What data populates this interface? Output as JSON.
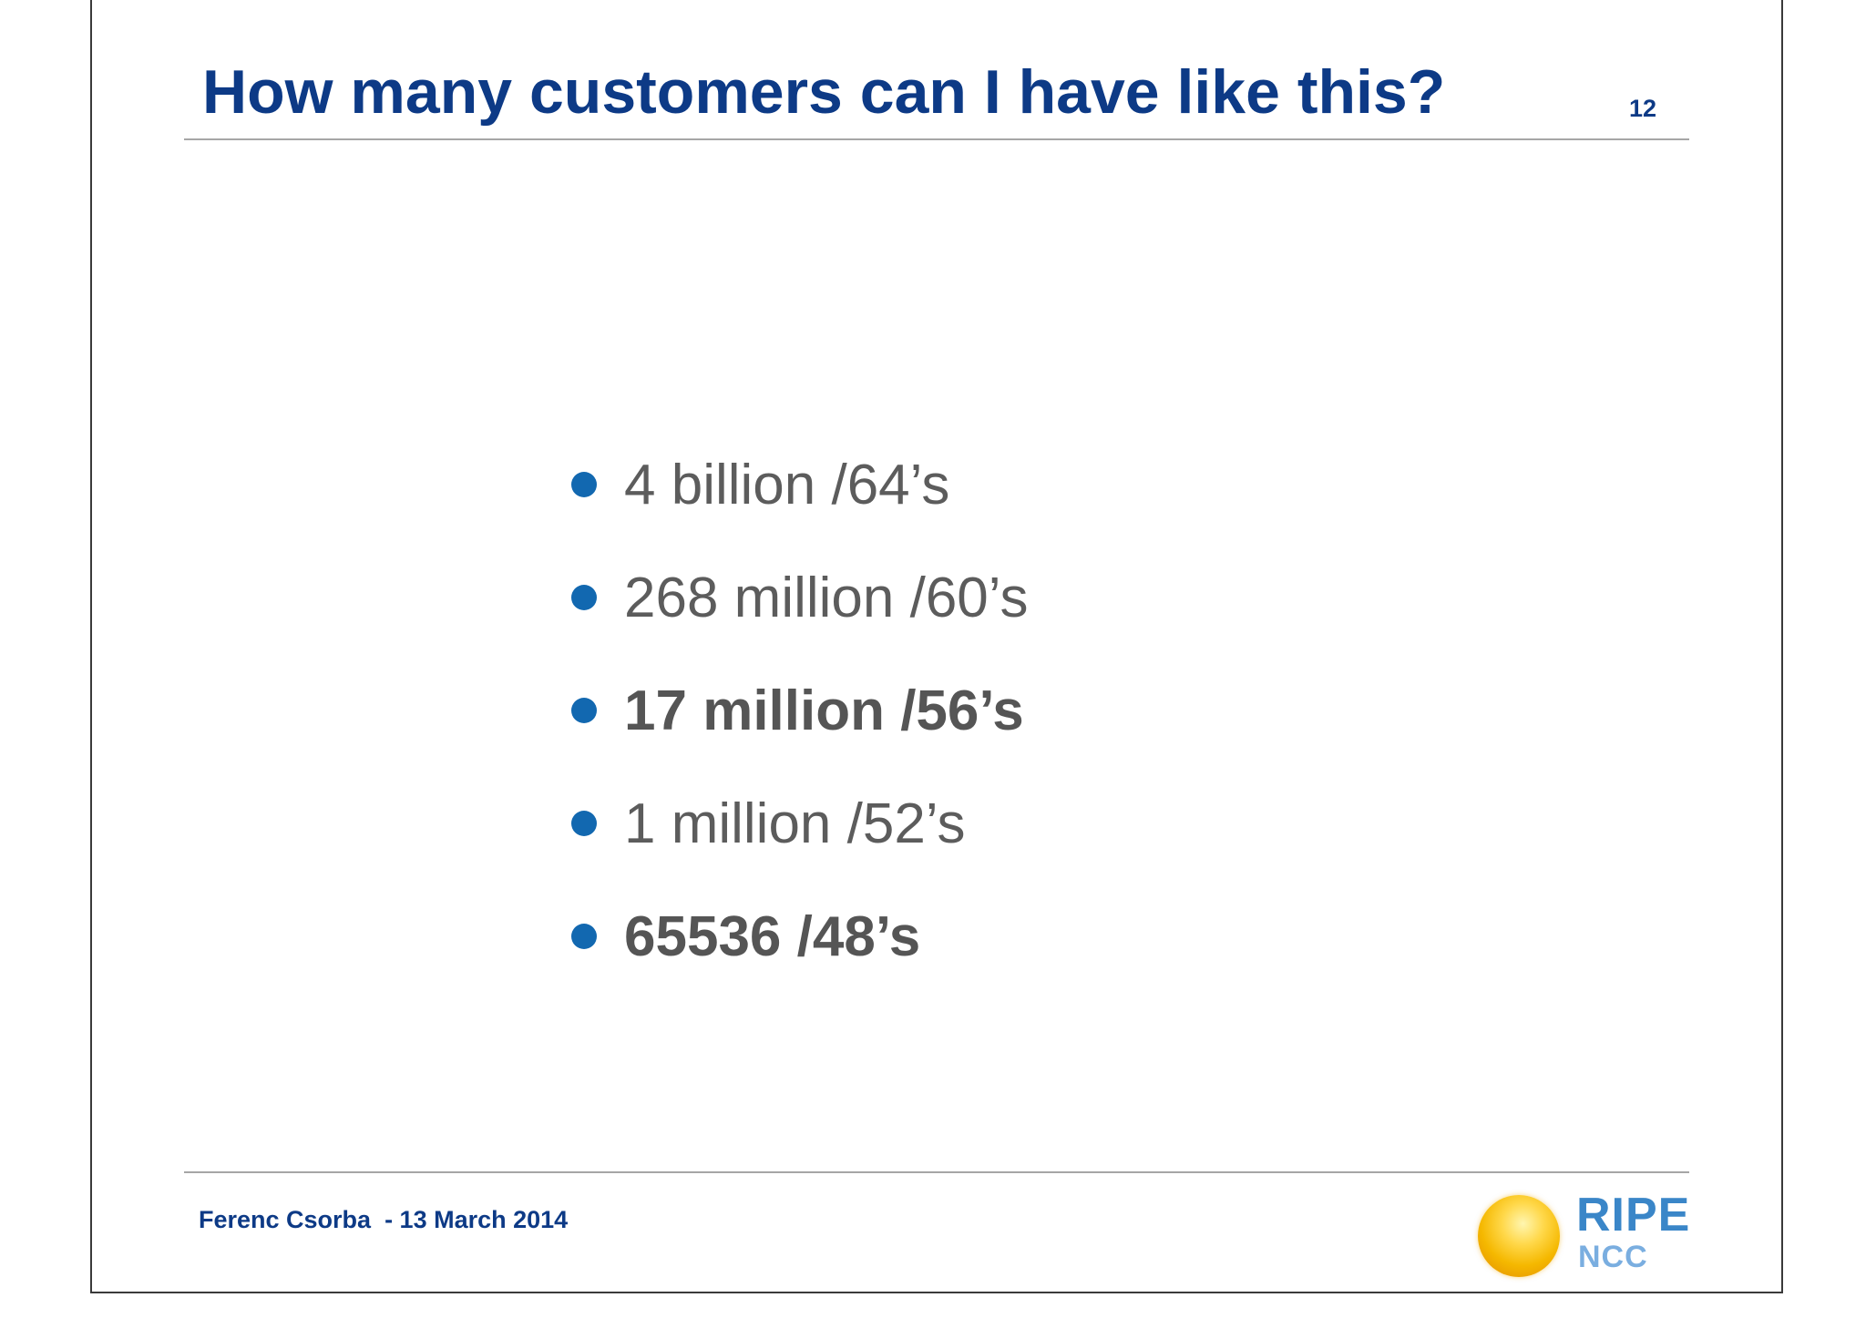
{
  "slide": {
    "title": "How many customers can I have like this?",
    "page_number": "12",
    "bullets": [
      {
        "text": "4 billion /64’s",
        "bold": false
      },
      {
        "text": "268 million /60’s",
        "bold": false
      },
      {
        "text": "17 million /56’s",
        "bold": true
      },
      {
        "text": "1 million /52’s",
        "bold": false
      },
      {
        "text": "65536 /48’s",
        "bold": true
      }
    ],
    "footer": "Ferenc Csorba  - 13 March 2014",
    "logo": {
      "main": "RIPE",
      "sub": "NCC",
      "icon": "ripe-ncc-sphere-icon"
    }
  },
  "colors": {
    "title": "#0d3a86",
    "bullet_dot": "#1268b0",
    "body_text": "#5c5c5c",
    "rule": "#a6a6a6",
    "logo_blue": "#3a86c8"
  }
}
